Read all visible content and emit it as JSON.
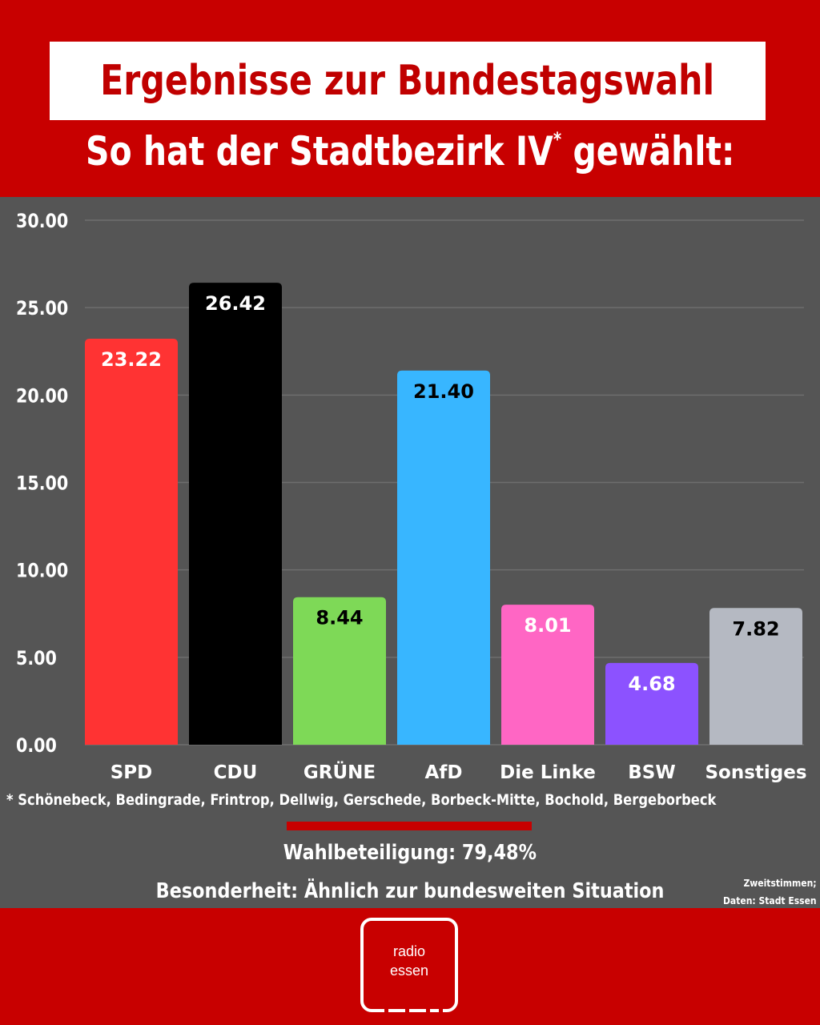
{
  "header": {
    "title": "Ergebnisse zur Bundestagswahl",
    "subtitle_main": "So hat der Stadtbezirk IV",
    "subtitle_mark": "*",
    "subtitle_end": " gewählt:"
  },
  "chart_data": {
    "type": "bar",
    "categories": [
      "SPD",
      "CDU",
      "GRÜNE",
      "AfD",
      "Die Linke",
      "BSW",
      "Sonstiges"
    ],
    "values": [
      23.22,
      26.42,
      8.44,
      21.4,
      8.01,
      4.68,
      7.82
    ],
    "value_labels": [
      "23.22",
      "26.42",
      "8.44",
      "21.40",
      "8.01",
      "4.68",
      "7.82"
    ],
    "bar_colors": [
      "#ff3333",
      "#000000",
      "#7ed957",
      "#38b6ff",
      "#ff66c4",
      "#8c52ff",
      "#b5b9c2"
    ],
    "label_colors": [
      "#ffffff",
      "#ffffff",
      "#000000",
      "#000000",
      "#ffffff",
      "#ffffff",
      "#000000"
    ],
    "yticks": [
      "0.00",
      "5.00",
      "10.00",
      "15.00",
      "20.00",
      "25.00",
      "30.00"
    ],
    "ylim": [
      0,
      30
    ],
    "grid": true,
    "title": "",
    "xlabel": "",
    "ylabel": ""
  },
  "footnote": "* Schönebeck, Bedingrade, Frintrop, Dellwig, Gerschede, Borbeck-Mitte, Bochold, Bergeborbeck",
  "turnout": "Wahlbeteiligung: 79,48%",
  "special": "Besonderheit: Ähnlich zur bundesweiten Situation",
  "source": {
    "line1": "Zweitstimmen;",
    "line2": "Daten: Stadt Essen"
  },
  "logo": {
    "line1": "radio",
    "line2": "essen"
  },
  "colors": {
    "brand_red": "#c80000",
    "panel_gray": "#555555",
    "title_red": "#c00000"
  }
}
